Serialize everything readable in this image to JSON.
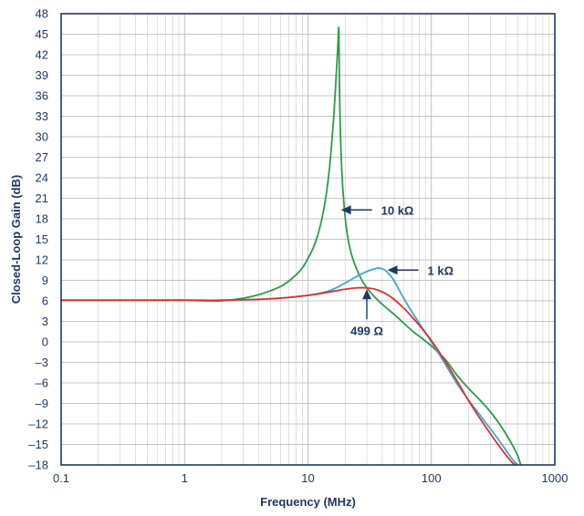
{
  "chart_data": {
    "type": "line",
    "title": "",
    "xlabel": "Frequency (MHz)",
    "ylabel": "Closed-Loop Gain (dB)",
    "xscale": "log",
    "xlim": [
      0.1,
      1000
    ],
    "ylim": [
      -18,
      48
    ],
    "grid": true,
    "xticks": [
      0.1,
      1,
      10,
      100,
      1000
    ],
    "xtick_labels": [
      "0.1",
      "1",
      "10",
      "100",
      "1000"
    ],
    "yticks": [
      -18,
      -15,
      -12,
      -9,
      -6,
      -3,
      0,
      3,
      6,
      9,
      12,
      15,
      18,
      21,
      24,
      27,
      30,
      33,
      36,
      39,
      42,
      45,
      48
    ],
    "ytick_labels": [
      "–18",
      "–15",
      "–12",
      "–9",
      "–6",
      "–3",
      "0",
      "3",
      "6",
      "9",
      "12",
      "15",
      "18",
      "21",
      "24",
      "27",
      "30",
      "33",
      "36",
      "39",
      "42",
      "45",
      "48"
    ],
    "series": [
      {
        "name": "10 kΩ",
        "color": "#2a9d45",
        "x": [
          0.1,
          0.5,
          1,
          1.5,
          2,
          3,
          4,
          5,
          6,
          7,
          8,
          9,
          10,
          11,
          12,
          13,
          14,
          15,
          16,
          16.5,
          17,
          17.5,
          17.8,
          18,
          18.3,
          18.8,
          19.5,
          20.5,
          22,
          24,
          27,
          30,
          35,
          40,
          50,
          60,
          70,
          80,
          100,
          130,
          160,
          200,
          250,
          300,
          350,
          400,
          450,
          500,
          530
        ],
        "y": [
          6.1,
          6.1,
          6.1,
          6.0,
          6.0,
          6.4,
          6.9,
          7.5,
          8.1,
          8.9,
          9.8,
          10.8,
          12.2,
          13.7,
          15.6,
          18.1,
          21.3,
          25.7,
          31.8,
          35.4,
          39.5,
          43.5,
          45.7,
          37,
          31,
          25,
          20.5,
          16.6,
          13.5,
          11.3,
          9.2,
          7.9,
          6.5,
          5.5,
          4.0,
          2.7,
          1.6,
          0.8,
          -0.6,
          -2.6,
          -4.8,
          -6.8,
          -8.6,
          -10.2,
          -11.8,
          -13.4,
          -15.0,
          -16.6,
          -18
        ]
      },
      {
        "name": "1 kΩ",
        "color": "#3da8d9",
        "x": [
          0.1,
          0.5,
          1,
          2,
          5,
          10,
          15,
          20,
          25,
          30,
          35,
          38,
          42,
          46,
          50,
          60,
          70,
          80,
          100,
          130,
          160,
          200,
          250,
          300,
          350,
          400,
          450,
          500
        ],
        "y": [
          6.1,
          6.1,
          6.1,
          6.1,
          6.3,
          6.8,
          7.5,
          8.6,
          9.6,
          10.3,
          10.7,
          10.8,
          10.5,
          9.8,
          8.9,
          6.3,
          4.3,
          2.7,
          0.0,
          -3.3,
          -6.0,
          -8.5,
          -10.8,
          -12.7,
          -14.3,
          -15.8,
          -17.1,
          -18
        ]
      },
      {
        "name": "499 Ω",
        "color": "#e0302b",
        "x": [
          0.1,
          0.5,
          1,
          2,
          5,
          10,
          15,
          20,
          25,
          30,
          35,
          40,
          45,
          50,
          60,
          70,
          80,
          100,
          130,
          160,
          200,
          250,
          300,
          350,
          400,
          450,
          480
        ],
        "y": [
          6.1,
          6.1,
          6.1,
          6.1,
          6.3,
          6.8,
          7.3,
          7.7,
          7.9,
          7.9,
          7.7,
          7.3,
          6.8,
          6.2,
          4.9,
          3.6,
          2.4,
          0.2,
          -2.9,
          -5.6,
          -8.6,
          -11.3,
          -13.4,
          -15.1,
          -16.5,
          -17.6,
          -18
        ]
      }
    ],
    "annotations": [
      {
        "text": "10 kΩ",
        "arrow_to_x": 18.5,
        "arrow_to_y": 19.3
      },
      {
        "text": "1 kΩ",
        "arrow_to_x": 44,
        "arrow_to_y": 10.5
      },
      {
        "text": "499 Ω",
        "arrow_to_x": 30,
        "arrow_to_y": 7.7
      }
    ]
  }
}
